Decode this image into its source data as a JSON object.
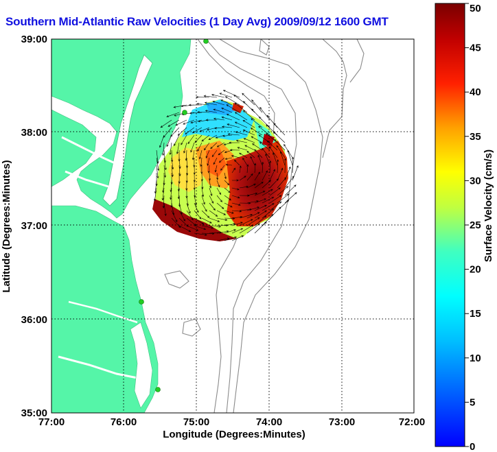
{
  "title": "Southern Mid-Atlantic Raw Velocities (1 Day Avg) 2009/09/12 1600 GMT",
  "x_axis": {
    "label": "Longitude (Degrees:Minutes)",
    "ticks": [
      "77:00",
      "76:00",
      "75:00",
      "74:00",
      "73:00",
      "72:00"
    ]
  },
  "y_axis": {
    "label": "Latitude (Degrees:Minutes)",
    "ticks": [
      "39:00",
      "38:00",
      "37:00",
      "36:00",
      "35:00"
    ]
  },
  "colorbar": {
    "label": "Surface Velocity (cm/s)",
    "ticks": [
      "50",
      "45",
      "40",
      "35",
      "30",
      "25",
      "20",
      "15",
      "10",
      "5",
      "0"
    ],
    "min": 0,
    "max": 50
  },
  "colors": {
    "land": "#55f5a8",
    "water": "#ffffff",
    "title": "#1010e0",
    "stations": "#22cc22"
  }
}
